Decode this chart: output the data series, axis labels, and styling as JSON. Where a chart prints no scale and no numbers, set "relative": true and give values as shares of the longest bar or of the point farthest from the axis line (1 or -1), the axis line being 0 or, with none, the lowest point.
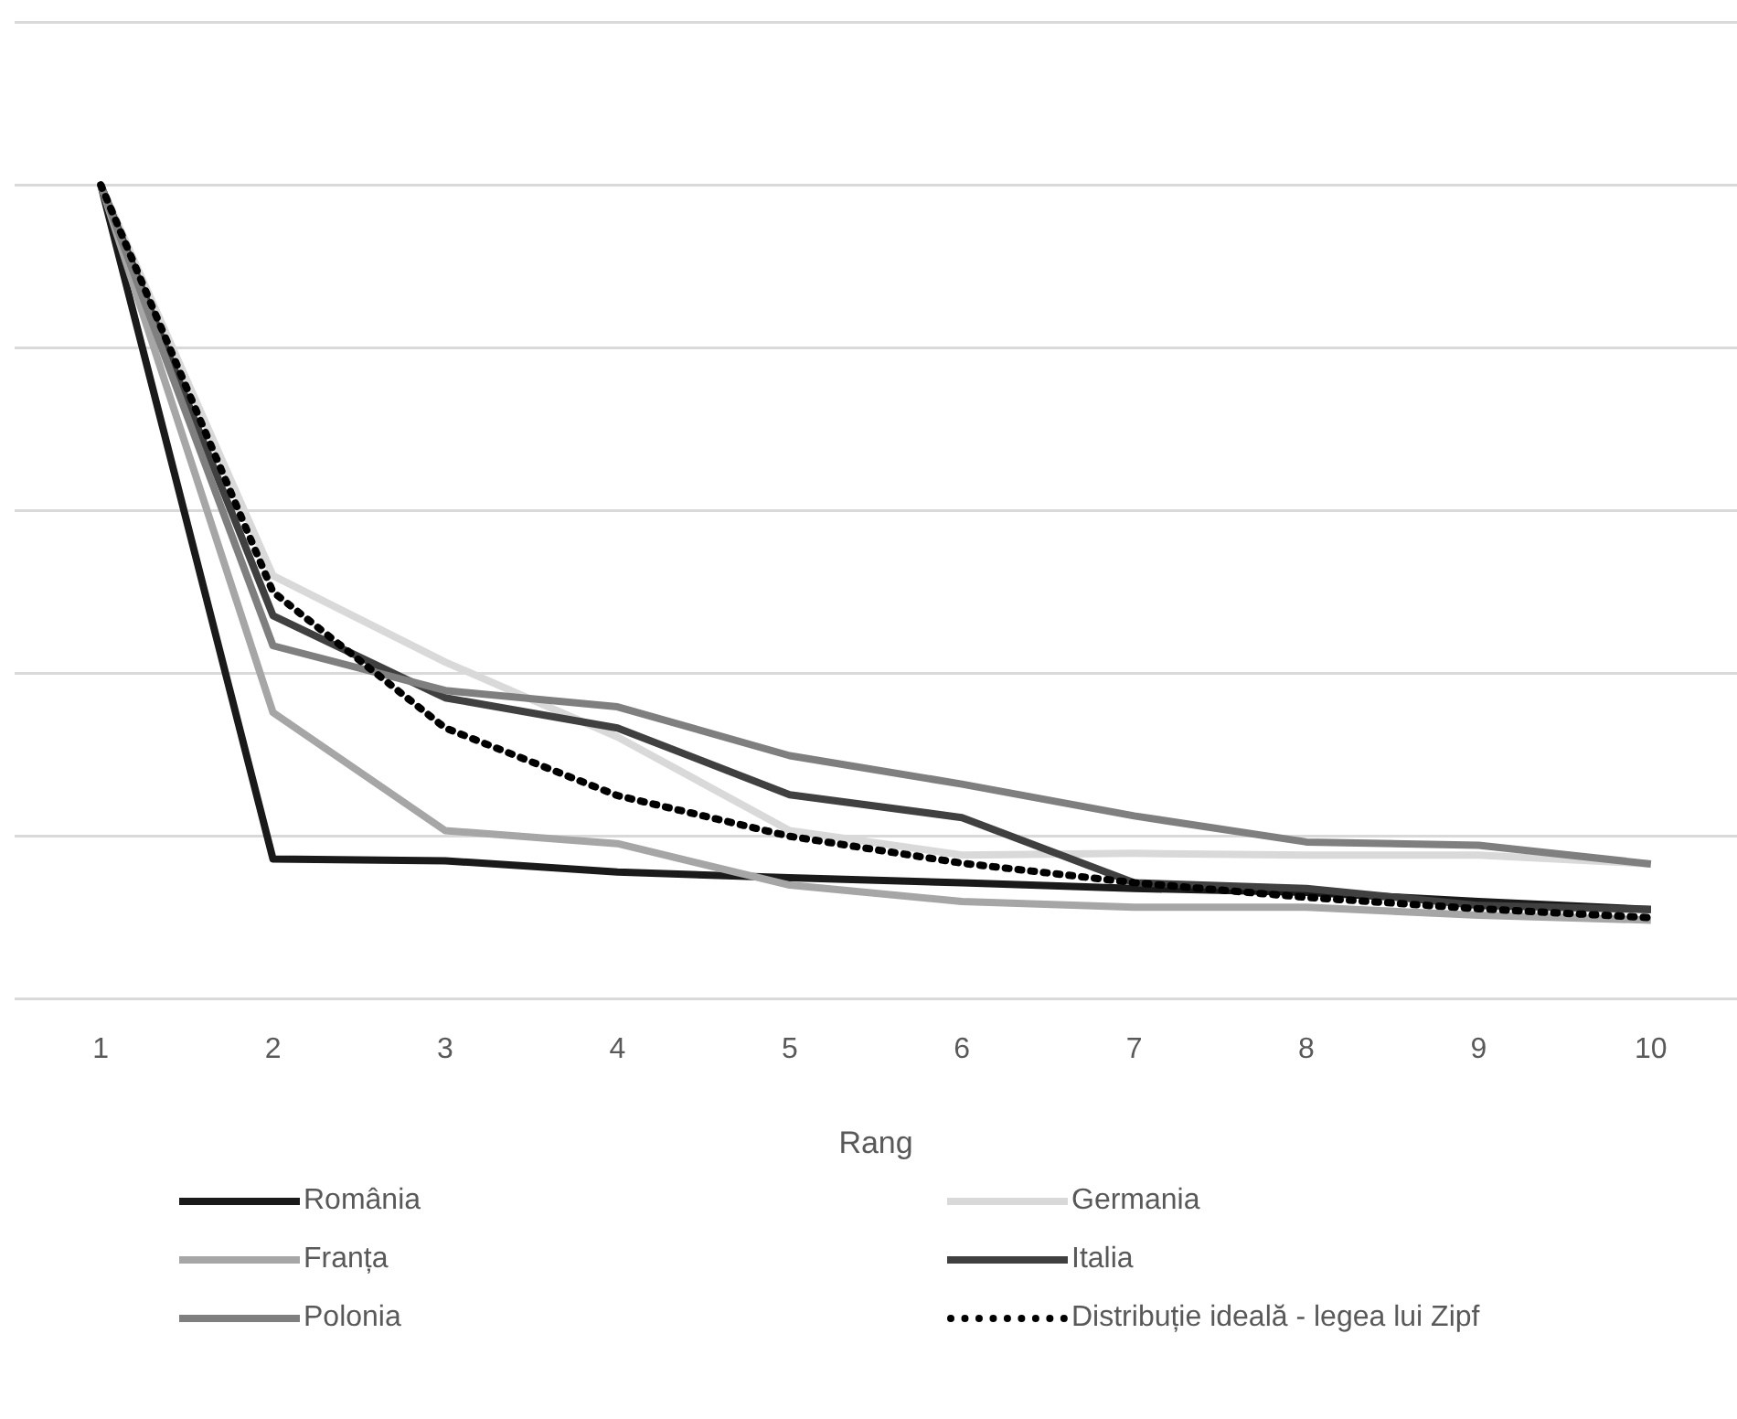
{
  "chart_data": {
    "type": "line",
    "xlabel": "Rang",
    "relative": true,
    "grid": "y",
    "legend": "bottom",
    "marker": "none",
    "categories": [
      "1",
      "2",
      "3",
      "4",
      "5",
      "6",
      "7",
      "8",
      "9",
      "10"
    ],
    "series": [
      {
        "name": "România",
        "color": "#1a1a1a",
        "values": [
          1,
          0.172,
          0.17,
          0.156,
          0.149,
          0.143,
          0.136,
          0.131,
          0.12,
          0.11
        ]
      },
      {
        "name": "Germania",
        "color": "#d9d9d9",
        "values": [
          1,
          0.52,
          0.414,
          0.322,
          0.207,
          0.177,
          0.179,
          0.177,
          0.177,
          0.166
        ]
      },
      {
        "name": "Franța",
        "color": "#a6a6a6",
        "values": [
          1,
          0.352,
          0.207,
          0.191,
          0.14,
          0.12,
          0.113,
          0.113,
          0.103,
          0.097
        ]
      },
      {
        "name": "Italia",
        "color": "#404040",
        "values": [
          1,
          0.471,
          0.37,
          0.333,
          0.251,
          0.223,
          0.143,
          0.136,
          0.115,
          0.11
        ]
      },
      {
        "name": "Polonia",
        "color": "#7f7f7f",
        "values": [
          1,
          0.434,
          0.379,
          0.359,
          0.299,
          0.264,
          0.225,
          0.193,
          0.189,
          0.166
        ]
      },
      {
        "name": "Distribuție ideală - legea lui Zipf",
        "color": "#000000",
        "line_style": "dotted",
        "values": [
          1,
          0.5,
          0.333,
          0.25,
          0.2,
          0.167,
          0.143,
          0.125,
          0.111,
          0.1
        ]
      }
    ]
  }
}
